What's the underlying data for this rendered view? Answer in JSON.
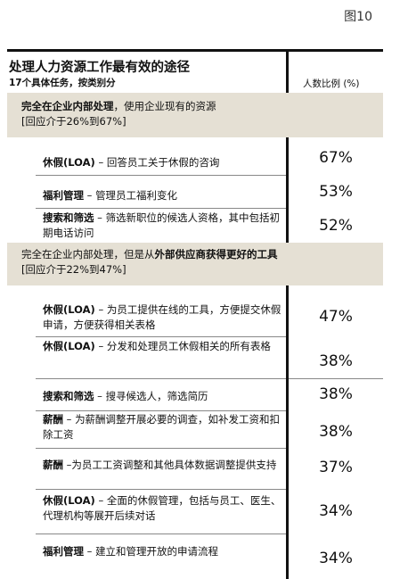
{
  "figure_label": "图10",
  "title": "处理人力资源工作最有效的途径",
  "subtitle": "17个具体任务，按类别分",
  "column_header": "人数比例 (%)",
  "sections": [
    {
      "heading_pre": "完全在企业内部处理",
      "heading_bold": "",
      "heading_mid": "，使用企业现有的资源",
      "range_text": "[回应介于26%到67%]",
      "rows": [
        {
          "key": "休假(LOA)",
          "sep": " – ",
          "desc": "回答员工关于休假的咨询",
          "pct": "67%"
        },
        {
          "key": "福利管理",
          "sep": " – ",
          "desc": "管理员工福利变化",
          "pct": "53%"
        },
        {
          "key": "搜索和筛选",
          "sep": " – ",
          "desc": "筛选新职位的候选人资格，其中包括初期电话访问",
          "pct": "52%"
        }
      ]
    },
    {
      "heading_pre": "完全在企业内部处理，但是从",
      "heading_bold": "外部供应商获得更好的工具",
      "heading_mid": "",
      "range_text": "[回应介于22%到47%]",
      "rows": [
        {
          "key": "休假(LOA)",
          "sep": " – ",
          "desc": "为员工提供在线的工具，方便提交休假申请，方便获得相关表格",
          "pct": "47%"
        },
        {
          "key": "休假(LOA)",
          "sep": " – ",
          "desc": "分发和处理员工休假相关的所有表格",
          "pct": "38%"
        },
        {
          "key": "搜索和筛选",
          "sep": " – ",
          "desc": "搜寻候选人，筛选简历",
          "pct": "38%"
        },
        {
          "key": "薪酬",
          "sep": " – ",
          "desc": "为薪酬调整开展必要的调查，如补发工资和扣除工资",
          "pct": "38%"
        },
        {
          "key": "薪酬",
          "sep": " –",
          "desc": "为员工工资调整和其他具体数据调整提供支持",
          "pct": "37%"
        },
        {
          "key": "休假(LOA)",
          "sep": " – ",
          "desc": "全面的休假管理，包括与员工、医生、代理机构等展开后续对话",
          "pct": "34%"
        },
        {
          "key": "福利管理",
          "sep": " – ",
          "desc": "建立和管理开放的申请流程",
          "pct": "34%"
        }
      ]
    }
  ]
}
